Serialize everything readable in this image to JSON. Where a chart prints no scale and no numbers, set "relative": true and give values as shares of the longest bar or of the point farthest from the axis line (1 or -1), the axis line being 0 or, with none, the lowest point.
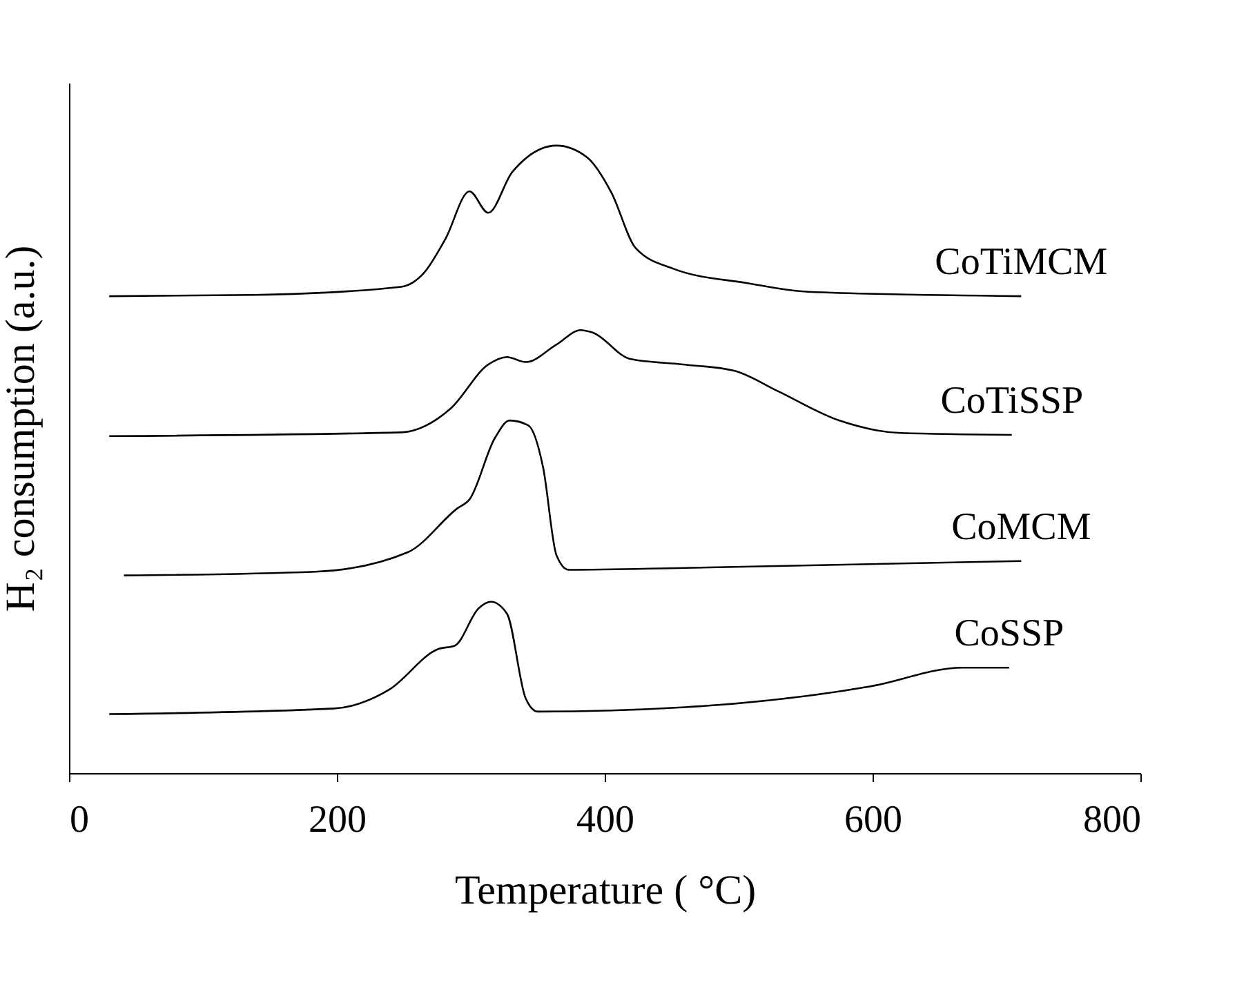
{
  "chart_data": {
    "type": "line",
    "relative": true,
    "xlabel": "Temperature ( °C)",
    "ylabel": "H₂ consumption (a.u.)",
    "xlim": [
      0,
      800
    ],
    "xticks": [
      0,
      200,
      400,
      600,
      800
    ],
    "grid": false,
    "legend": false,
    "marker": "none",
    "line_style": "solid",
    "series": [
      {
        "name": "CoTiMCM",
        "color": "#000000",
        "x": [
          30,
          138,
          248,
          265,
          281,
          299,
          313,
          331,
          364,
          387,
          405,
          423,
          451,
          506,
          552,
          711
        ],
        "values": [
          0.76,
          0.762,
          0.775,
          0.797,
          0.851,
          0.927,
          0.893,
          0.958,
          1.0,
          0.981,
          0.925,
          0.837,
          0.804,
          0.781,
          0.767,
          0.76
        ]
      },
      {
        "name": "CoTiSSP",
        "color": "#000000",
        "x": [
          30,
          248,
          285,
          313,
          327,
          341,
          364,
          382,
          391,
          419,
          460,
          497,
          529,
          575,
          621,
          704
        ],
        "values": [
          0.537,
          0.543,
          0.581,
          0.651,
          0.663,
          0.655,
          0.683,
          0.706,
          0.702,
          0.66,
          0.651,
          0.641,
          0.609,
          0.562,
          0.542,
          0.539
        ]
      },
      {
        "name": "CoMCM",
        "color": "#000000",
        "x": [
          41,
          184,
          253,
          290,
          299,
          318,
          329,
          343,
          354,
          364,
          373,
          460,
          711
        ],
        "values": [
          0.315,
          0.321,
          0.352,
          0.422,
          0.436,
          0.534,
          0.562,
          0.554,
          0.487,
          0.347,
          0.324,
          0.327,
          0.338
        ]
      },
      {
        "name": "CoSSP",
        "color": "#000000",
        "x": [
          30,
          198,
          239,
          276,
          288,
          306,
          315,
          327,
          341,
          350,
          460,
          598,
          667,
          702
        ],
        "values": [
          0.094,
          0.103,
          0.133,
          0.198,
          0.203,
          0.263,
          0.273,
          0.254,
          0.119,
          0.098,
          0.105,
          0.138,
          0.168,
          0.168
        ]
      }
    ]
  }
}
